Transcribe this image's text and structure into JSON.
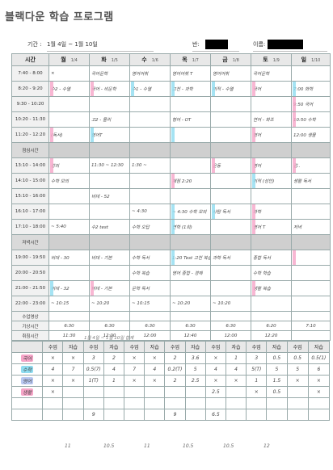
{
  "title": "블랙다운 학습 프로그램",
  "header": {
    "period_label": "기간 :",
    "period_value": "1월 4일 ~ 1월 10일",
    "class_label": "반:",
    "name_label": "이름:"
  },
  "schedule": {
    "columns": [
      "시간",
      "월",
      "화",
      "수",
      "목",
      "금",
      "토",
      "일"
    ],
    "dates": [
      "1/4",
      "1/5",
      "1/6",
      "1/7",
      "1/8",
      "1/9",
      "1/10"
    ],
    "rows": [
      {
        "time": "7:40 - 8:00",
        "cells": [
          "×",
          "국어문학",
          "영어어휘",
          "영어어휘 T",
          "영어어휘",
          "국어문학",
          ""
        ]
      },
      {
        "time": "8:20 - 9:20",
        "cells": [
          "수2 - 수열",
          "국어 - 비문학",
          "수1 - 수열",
          "고전 - 과학",
          "미적 - 수열",
          "국어",
          "7:00 화학"
        ]
      },
      {
        "time": "9:30 - 10:20",
        "cells": [
          "",
          "",
          "",
          "",
          "",
          "",
          "9:50 국어"
        ]
      },
      {
        "time": "10:20 - 11:30",
        "cells": [
          "",
          "고2 - 물리",
          "",
          "형어 - OT",
          "",
          "연어 - 화조",
          "10:50 수학"
        ]
      },
      {
        "time": "11:20 - 12:20",
        "cells": [
          "(독서)",
          "형어T",
          "",
          "",
          "",
          "형어",
          "12:00 생물"
        ]
      },
      {
        "time": "점심시간",
        "cells": [
          "",
          "",
          "",
          "",
          "",
          "",
          ""
        ],
        "gray": true
      },
      {
        "time": "13:10 - 14:00",
        "cells": [
          "강의",
          "11:30 ~ 12:30",
          "1:30 ~",
          "",
          "운동",
          "영어",
          "감.."
        ]
      },
      {
        "time": "14:10 - 15:00",
        "cells": [
          "수학 모의",
          "",
          "",
          "채점 2:20",
          "",
          "미적 (성인)",
          "생활 독서"
        ]
      },
      {
        "time": "15:10 - 16:00",
        "cells": [
          "",
          "비대 - 52",
          "",
          "",
          "",
          "",
          ""
        ]
      },
      {
        "time": "16:10 - 17:00",
        "cells": [
          "",
          "",
          "~ 4:30",
          "~ 4:30 수학 모의",
          "사탐 독서",
          "화학",
          ""
        ]
      },
      {
        "time": "17:10 - 18:00",
        "cells": [
          "~ 5:40",
          "수2 test",
          "수학 오답",
          "연학 (1회)",
          "",
          "영어 T",
          "저녁"
        ]
      },
      {
        "time": "저녁시간",
        "cells": [
          "",
          "",
          "",
          "",
          "",
          "",
          ""
        ],
        "gray": true
      },
      {
        "time": "19:00 - 19:50",
        "cells": [
          "비대 - 30",
          "비대 - 기본",
          "수학 독서",
          "1:20 Test 고전 복습",
          "과학 독서",
          "종합 독서",
          ""
        ]
      },
      {
        "time": "20:00 - 20:50",
        "cells": [
          "",
          "",
          "수학 복습",
          "영어 종합 - 경제",
          "",
          "수학 학습",
          ""
        ]
      },
      {
        "time": "21:00 - 21:50",
        "cells": [
          "비대 - 32",
          "비대 - 기본",
          "문학 독서",
          "",
          "",
          "생활 복습",
          ""
        ]
      },
      {
        "time": "22:00 - 23:00",
        "cells": [
          "~ 10:15",
          "~ 10:20",
          "~ 10:15",
          "~ 10:20",
          "~ 10:20",
          "",
          ""
        ]
      },
      {
        "time": "수업영상",
        "cells": [
          "",
          "",
          "",
          "",
          "",
          "",
          ""
        ],
        "foot": true
      },
      {
        "time": "기상시간",
        "cells": [
          "6:30",
          "6:30",
          "6:30",
          "6:30",
          "6:30",
          "6:20",
          "7:10"
        ],
        "foot": true
      },
      {
        "time": "취침시간",
        "cells": [
          "11:30",
          "12:00",
          "12:00",
          "12:40",
          "12:00",
          "12:20",
          ""
        ],
        "foot": true
      }
    ]
  },
  "note": "1월 4일 ~ 1월 10일 합계",
  "summary": {
    "header": [
      "",
      "수업",
      "자습",
      "수업",
      "자습",
      "수업",
      "자습",
      "수업",
      "자습",
      "수업",
      "자습",
      "수업",
      "자습",
      "수업",
      "자습"
    ],
    "rows": [
      {
        "subject": "국어",
        "color": "#f6a5c8",
        "cells": [
          "×",
          "×",
          "3",
          "2",
          "×",
          "×",
          "2",
          "3.6",
          "×",
          "1",
          "3",
          "0.5",
          "0.5",
          "0.5(1)"
        ]
      },
      {
        "subject": "수학",
        "color": "#8fdcf0",
        "cells": [
          "4",
          "7",
          "0.5(7)",
          "4",
          "7",
          "4",
          "0.2(T)",
          "5",
          "4",
          "4",
          "5(T)",
          "5",
          "5",
          "6"
        ]
      },
      {
        "subject": "영어",
        "color": "#b9c8f2",
        "cells": [
          "×",
          "×",
          "1(T)",
          "1",
          "×",
          "×",
          "2",
          "2.5",
          "×",
          "×",
          "1",
          "1.5",
          "×",
          "×"
        ]
      },
      {
        "subject": "생활",
        "color": "#f6a5c8",
        "cells": [
          "×",
          "",
          "",
          "",
          "",
          "",
          "",
          "",
          "2.5",
          "",
          "×",
          "0.5",
          "",
          "×"
        ]
      },
      {
        "subject": "",
        "color": "",
        "cells": [
          "",
          "",
          "",
          "",
          "",
          "",
          "",
          "",
          "",
          "",
          "",
          "",
          "",
          ""
        ]
      },
      {
        "subject": "",
        "color": "",
        "cells": [
          "",
          "",
          "9",
          "",
          "",
          "",
          "9",
          "",
          "6.5",
          "",
          "",
          "",
          "",
          ""
        ]
      }
    ],
    "totals": [
      "11",
      "10.5",
      "11",
      "10.5",
      "10.5",
      "12",
      ""
    ]
  },
  "colors": {
    "highlight_pink": "#f6a5c8",
    "highlight_cyan": "#8fdcf0",
    "grid": "#9aa9aa"
  }
}
